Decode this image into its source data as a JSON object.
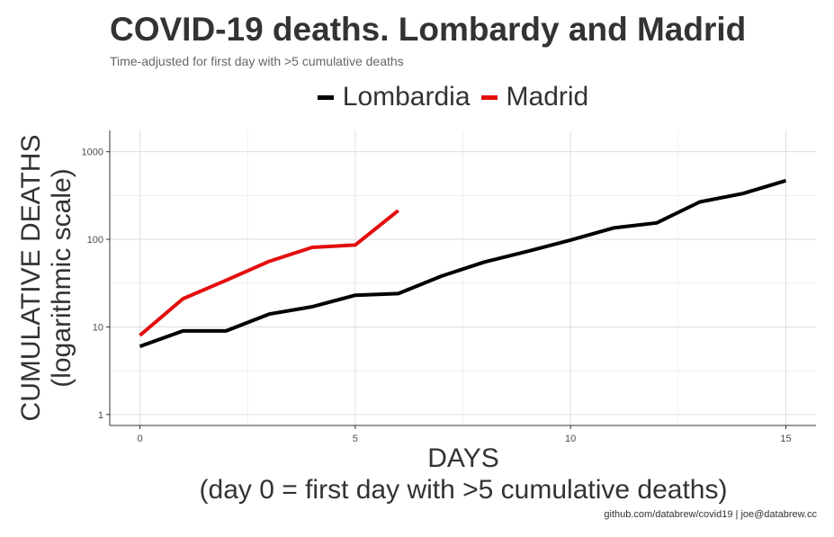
{
  "chart_data": {
    "type": "line",
    "title": "COVID-19 deaths. Lombardy and Madrid",
    "subtitle": "Time-adjusted for first day with >5 cumulative deaths",
    "xlabel": [
      "DAYS",
      "(day 0 = first day with >5 cumulative deaths)"
    ],
    "ylabel": [
      "CUMULATIVE DEATHS",
      "(logarithmic scale)"
    ],
    "y_scale": "log10",
    "xlim": [
      -0.7,
      15.7
    ],
    "ylim": [
      0.75,
      1750
    ],
    "x_ticks": [
      0,
      5,
      10,
      15
    ],
    "x_tick_labels": [
      "0",
      "5",
      "10",
      "15"
    ],
    "y_ticks": [
      1,
      10,
      100,
      1000
    ],
    "y_tick_labels": [
      "1",
      "10",
      "100",
      "1000"
    ],
    "grid": true,
    "legend_position": "top",
    "series": [
      {
        "name": "Lombardia",
        "color": "#000000",
        "x": [
          0,
          1,
          2,
          3,
          4,
          5,
          6,
          7,
          8,
          9,
          10,
          11,
          12,
          13,
          14,
          15
        ],
        "values": [
          6,
          9,
          9,
          14,
          17,
          23,
          24,
          38,
          55,
          73,
          98,
          135,
          154,
          267,
          333,
          468
        ]
      },
      {
        "name": "Madrid",
        "color": "#e30d0d",
        "x": [
          0,
          1,
          2,
          3,
          4,
          5,
          6
        ],
        "values": [
          8,
          21,
          34,
          56,
          81,
          86,
          213
        ]
      }
    ]
  },
  "caption": "github.com/databrew/covid19 | joe@databrew.cc"
}
